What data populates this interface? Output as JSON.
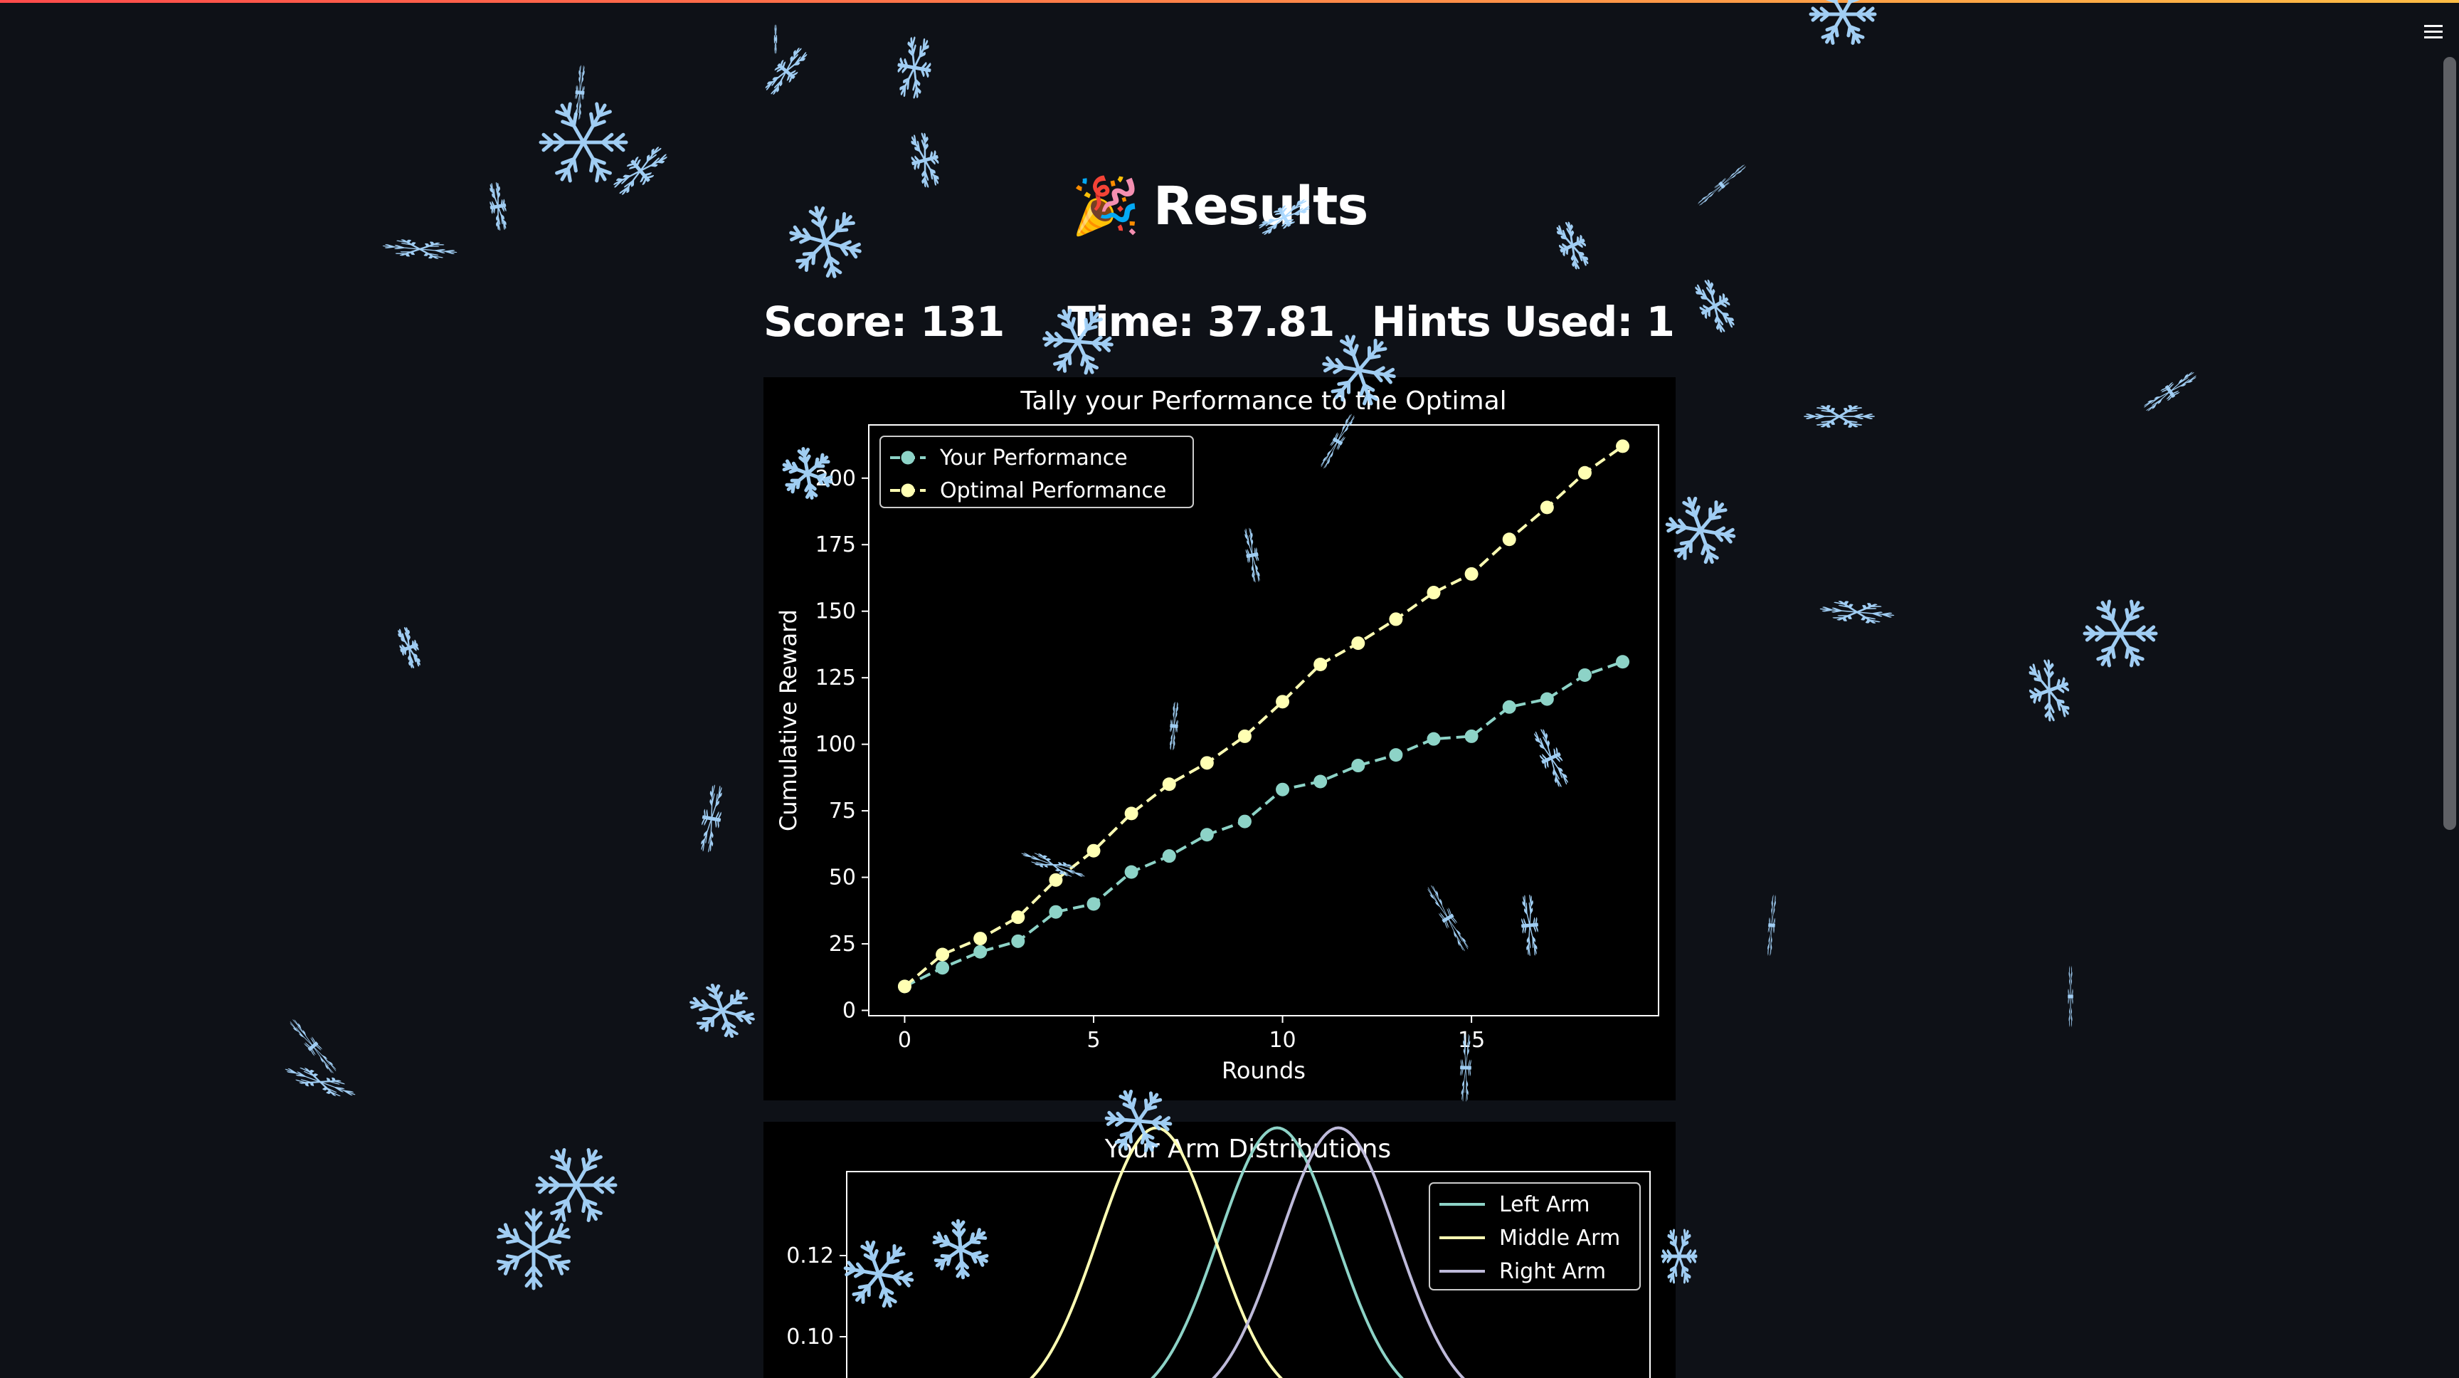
{
  "header": {
    "menu_icon": "hamburger-menu-icon"
  },
  "page": {
    "title_emoji": "🎉",
    "title": "Results",
    "score_text": "Score: 131",
    "time_text": "Time: 37.81",
    "hints_text": "Hints Used: 1"
  },
  "colors": {
    "background": "#0e1117",
    "your_performance": "#8dd3c7",
    "optimal_performance": "#ffffb3",
    "right_arm": "#bebada",
    "snowflake": "#a8d8ff"
  },
  "chart_data": [
    {
      "type": "line",
      "title": "Tally your Performance to the Optimal",
      "xlabel": "Rounds",
      "ylabel": "Cumulative Reward",
      "xlim": [
        -0.95,
        19.95
      ],
      "ylim": [
        -2,
        220
      ],
      "xticks": [
        0,
        5,
        10,
        15
      ],
      "yticks": [
        0,
        25,
        50,
        75,
        100,
        125,
        150,
        175,
        200
      ],
      "legend_position": "top-left",
      "grid": false,
      "x": [
        0,
        1,
        2,
        3,
        4,
        5,
        6,
        7,
        8,
        9,
        10,
        11,
        12,
        13,
        14,
        15,
        16,
        17,
        18,
        19
      ],
      "series": [
        {
          "name": "Your Performance",
          "color": "#8dd3c7",
          "values": [
            9,
            16,
            22,
            26,
            37,
            40,
            52,
            58,
            66,
            71,
            83,
            86,
            92,
            96,
            102,
            103,
            114,
            117,
            126,
            131
          ]
        },
        {
          "name": "Optimal Performance",
          "color": "#ffffb3",
          "values": [
            9,
            21,
            27,
            35,
            49,
            60,
            74,
            85,
            93,
            103,
            116,
            130,
            138,
            147,
            157,
            164,
            177,
            189,
            202,
            212
          ]
        }
      ]
    },
    {
      "type": "line",
      "title": "Your Arm Distributions",
      "legend_position": "top-right",
      "grid": false,
      "yticks_visible": [
        "0.12",
        "0.10"
      ],
      "series": [
        {
          "name": "Left Arm",
          "color": "#8dd3c7"
        },
        {
          "name": "Middle Arm",
          "color": "#ffffb3"
        },
        {
          "name": "Right Arm",
          "color": "#bebada"
        }
      ]
    }
  ]
}
